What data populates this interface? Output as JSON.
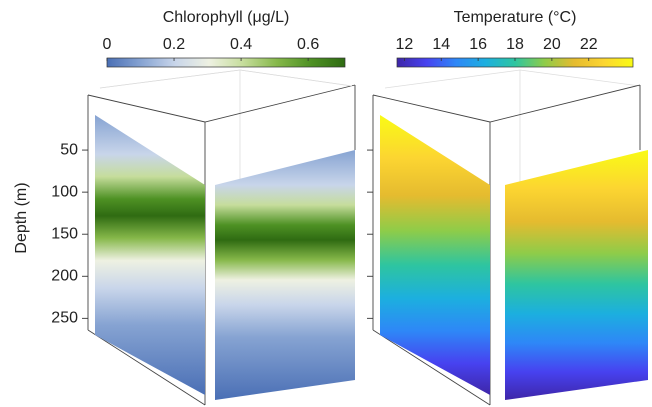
{
  "chart_data": [
    {
      "type": "curtain",
      "title": "Chlorophyll (μg/L)",
      "ylabel": "Depth (m)",
      "clim": [
        0,
        0.71
      ],
      "cticks": [
        0,
        0.2,
        0.4,
        0.6
      ],
      "ylim": [
        0,
        290
      ],
      "yticks": [
        50,
        100,
        150,
        200,
        250
      ],
      "show_ytick_labels": true,
      "colormap": [
        "#4a6fb5",
        "#86a3d2",
        "#c8d5ea",
        "#eef1e2",
        "#c6dd9c",
        "#86b84a",
        "#4e9124",
        "#2f6b12"
      ]
    },
    {
      "type": "curtain",
      "title": "Temperature (°C)",
      "clim": [
        11.6,
        24.4
      ],
      "cticks": [
        12,
        14,
        16,
        18,
        20,
        22
      ],
      "ylim": [
        0,
        290
      ],
      "yticks": [
        50,
        100,
        150,
        200,
        250
      ],
      "show_ytick_labels": false,
      "colormap": [
        "#3e26a8",
        "#4742f0",
        "#2e87f7",
        "#1cafdf",
        "#2ec5a0",
        "#8ecc49",
        "#e5bb2f",
        "#fcd531",
        "#f9fb15"
      ]
    }
  ]
}
